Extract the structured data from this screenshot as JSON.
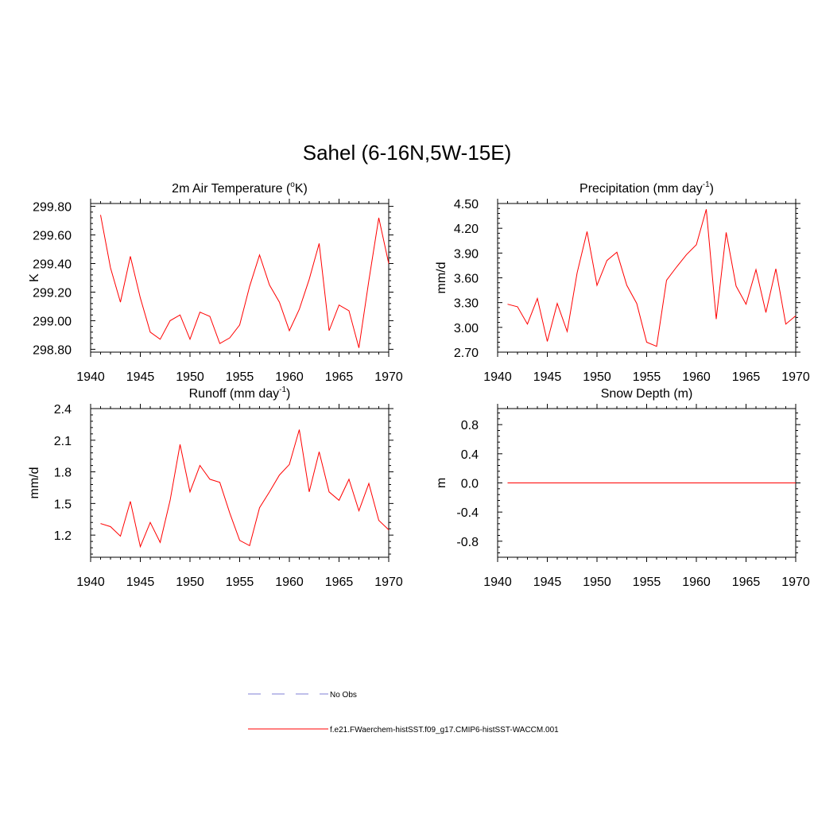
{
  "figure": {
    "title": "Sahel (6-16N,5W-15E)"
  },
  "legend": {
    "entries": [
      {
        "label": "No Obs",
        "color": "#9999dd",
        "style": "dashed"
      },
      {
        "label": "f.e21.FWaerchem-histSST.f09_g17.CMIP6-histSST-WACCM.001",
        "color": "#ff0000",
        "style": "solid"
      }
    ]
  },
  "chart_data": [
    {
      "type": "line",
      "title": "2m Air Temperature",
      "title_sup_text": "o",
      "title_prefix": "2m Air Temperature (",
      "title_suffix": "K)",
      "ylabel": "K",
      "xlim": [
        1940,
        1970
      ],
      "ylim": [
        298.78,
        299.82
      ],
      "xticks": [
        1940,
        1945,
        1950,
        1955,
        1960,
        1965,
        1970
      ],
      "yticks": [
        "299.80",
        "299.60",
        "299.40",
        "299.20",
        "299.00",
        "298.80"
      ],
      "ytick_values": [
        299.8,
        299.6,
        299.4,
        299.2,
        299.0,
        298.8
      ],
      "line_color": "#ff0000",
      "series": [
        {
          "x": [
            1941,
            1942,
            1943,
            1944,
            1945,
            1946,
            1947,
            1948,
            1949,
            1950,
            1951,
            1952,
            1953,
            1954,
            1955,
            1956,
            1957,
            1958,
            1959,
            1960,
            1961,
            1962,
            1963,
            1964,
            1965,
            1966,
            1967,
            1968,
            1969,
            1970
          ],
          "values": [
            299.74,
            299.37,
            299.13,
            299.45,
            299.16,
            298.92,
            298.87,
            299.0,
            299.04,
            298.87,
            299.06,
            299.03,
            298.84,
            298.88,
            298.97,
            299.24,
            299.46,
            299.25,
            299.13,
            298.93,
            299.08,
            299.29,
            299.54,
            298.93,
            299.11,
            299.07,
            298.81,
            299.28,
            299.72,
            299.4
          ]
        }
      ]
    },
    {
      "type": "line",
      "title": "Precipitation (mm day-1)",
      "title_prefix": "Precipitation (mm day",
      "title_sup_text": "-1",
      "title_suffix": ")",
      "ylabel": "mm/d",
      "xlim": [
        1940,
        1970
      ],
      "ylim": [
        2.7,
        4.5
      ],
      "xticks": [
        1940,
        1945,
        1950,
        1955,
        1960,
        1965,
        1970
      ],
      "yticks": [
        "4.50",
        "4.20",
        "3.90",
        "3.60",
        "3.30",
        "3.00",
        "2.70"
      ],
      "ytick_values": [
        4.5,
        4.2,
        3.9,
        3.6,
        3.3,
        3.0,
        2.7
      ],
      "line_color": "#ff0000",
      "series": [
        {
          "x": [
            1941,
            1942,
            1943,
            1944,
            1945,
            1946,
            1947,
            1948,
            1949,
            1950,
            1951,
            1952,
            1953,
            1954,
            1955,
            1956,
            1957,
            1958,
            1959,
            1960,
            1961,
            1962,
            1963,
            1964,
            1965,
            1966,
            1967,
            1968,
            1969,
            1970
          ],
          "values": [
            3.28,
            3.25,
            3.04,
            3.35,
            2.83,
            3.29,
            2.95,
            3.66,
            4.16,
            3.51,
            3.81,
            3.91,
            3.51,
            3.29,
            2.82,
            2.77,
            3.57,
            3.73,
            3.88,
            4.0,
            4.43,
            3.1,
            4.15,
            3.5,
            3.28,
            3.7,
            3.18,
            3.71,
            3.04,
            3.14
          ]
        }
      ]
    },
    {
      "type": "line",
      "title": "Runoff (mm day-1)",
      "title_prefix": "Runoff (mm day",
      "title_sup_text": "-1",
      "title_suffix": ")",
      "ylabel": "mm/d",
      "xlim": [
        1940,
        1970
      ],
      "ylim": [
        0.99,
        2.4
      ],
      "xticks": [
        1940,
        1945,
        1950,
        1955,
        1960,
        1965,
        1970
      ],
      "yticks": [
        "2.4",
        "2.1",
        "1.8",
        "1.5",
        "1.2"
      ],
      "ytick_values": [
        2.4,
        2.1,
        1.8,
        1.5,
        1.2
      ],
      "line_color": "#ff0000",
      "series": [
        {
          "x": [
            1941,
            1942,
            1943,
            1944,
            1945,
            1946,
            1947,
            1948,
            1949,
            1950,
            1951,
            1952,
            1953,
            1954,
            1955,
            1956,
            1957,
            1958,
            1959,
            1960,
            1961,
            1962,
            1963,
            1964,
            1965,
            1966,
            1967,
            1968,
            1969,
            1970
          ],
          "values": [
            1.31,
            1.28,
            1.19,
            1.52,
            1.09,
            1.32,
            1.13,
            1.53,
            2.06,
            1.61,
            1.86,
            1.73,
            1.7,
            1.41,
            1.15,
            1.1,
            1.46,
            1.61,
            1.77,
            1.87,
            2.2,
            1.61,
            1.99,
            1.61,
            1.53,
            1.73,
            1.43,
            1.69,
            1.34,
            1.25
          ]
        }
      ]
    },
    {
      "type": "line",
      "title": "Snow Depth (m)",
      "ylabel": "m",
      "xlim": [
        1940,
        1970
      ],
      "ylim": [
        -1.02,
        1.02
      ],
      "xticks": [
        1940,
        1945,
        1950,
        1955,
        1960,
        1965,
        1970
      ],
      "yticks": [
        "0.8",
        "0.4",
        "0.0",
        "-0.4",
        "-0.8"
      ],
      "ytick_values": [
        0.8,
        0.4,
        0.0,
        -0.4,
        -0.8
      ],
      "line_color": "#ff0000",
      "series": [
        {
          "x": [
            1941,
            1942,
            1943,
            1944,
            1945,
            1946,
            1947,
            1948,
            1949,
            1950,
            1951,
            1952,
            1953,
            1954,
            1955,
            1956,
            1957,
            1958,
            1959,
            1960,
            1961,
            1962,
            1963,
            1964,
            1965,
            1966,
            1967,
            1968,
            1969,
            1970
          ],
          "values": [
            0,
            0,
            0,
            0,
            0,
            0,
            0,
            0,
            0,
            0,
            0,
            0,
            0,
            0,
            0,
            0,
            0,
            0,
            0,
            0,
            0,
            0,
            0,
            0,
            0,
            0,
            0,
            0,
            0,
            0
          ]
        }
      ]
    }
  ]
}
